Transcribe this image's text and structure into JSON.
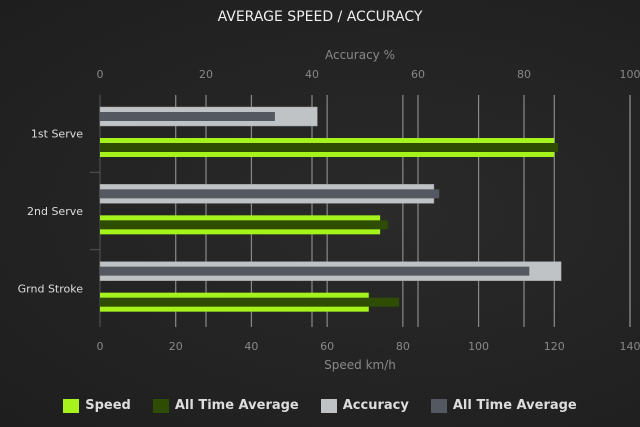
{
  "chart_data": {
    "type": "bar",
    "orientation": "horizontal",
    "title": "AVERAGE SPEED / ACCURACY",
    "categories": [
      "1st Serve",
      "2nd Serve",
      "Grnd Stroke"
    ],
    "x_bottom": {
      "label": "Speed km/h",
      "range": [
        0,
        140
      ],
      "ticks": [
        0,
        20,
        40,
        60,
        80,
        100,
        120,
        140
      ]
    },
    "x_top": {
      "label": "Accuracy %",
      "range": [
        0,
        100
      ],
      "ticks": [
        0,
        20,
        40,
        60,
        80,
        100
      ]
    },
    "grid": true,
    "legend_placement": "bottom",
    "series": [
      {
        "name": "Speed",
        "axis": "bottom",
        "color": "#a6f21c",
        "values": [
          120,
          74,
          71
        ]
      },
      {
        "name": "All Time Average",
        "axis": "bottom",
        "color": "#2f4d02",
        "values": [
          121,
          76,
          79
        ]
      },
      {
        "name": "Accuracy",
        "axis": "top",
        "color": "#bfc3c6",
        "values": [
          41,
          63,
          87
        ]
      },
      {
        "name": "All Time Average",
        "axis": "top",
        "color": "#545861",
        "values": [
          33,
          64,
          81
        ]
      }
    ]
  }
}
